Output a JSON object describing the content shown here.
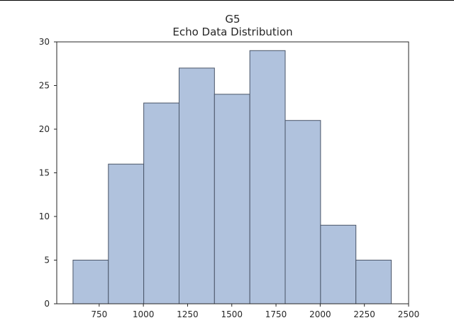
{
  "chart_data": {
    "type": "bar",
    "title": "G5",
    "subtitle": "Echo Data Distribution",
    "xlabel": "",
    "ylabel": "",
    "bins": [
      {
        "start": 602,
        "end": 802,
        "count": 5
      },
      {
        "start": 802,
        "end": 1002,
        "count": 16
      },
      {
        "start": 1002,
        "end": 1202,
        "count": 23
      },
      {
        "start": 1202,
        "end": 1402,
        "count": 27
      },
      {
        "start": 1402,
        "end": 1602,
        "count": 24
      },
      {
        "start": 1602,
        "end": 1802,
        "count": 29
      },
      {
        "start": 1802,
        "end": 2002,
        "count": 21
      },
      {
        "start": 2002,
        "end": 2202,
        "count": 9
      },
      {
        "start": 2202,
        "end": 2402,
        "count": 5
      }
    ],
    "xlim": [
      510,
      2500
    ],
    "ylim": [
      0,
      30
    ],
    "x_ticks": [
      750,
      1000,
      1250,
      1500,
      1750,
      2000,
      2250,
      2500
    ],
    "y_ticks": [
      0,
      5,
      10,
      15,
      20,
      25,
      30
    ],
    "grid": false,
    "bar_color": "#b0c2dd",
    "bar_edge_color": "#4a5568"
  }
}
